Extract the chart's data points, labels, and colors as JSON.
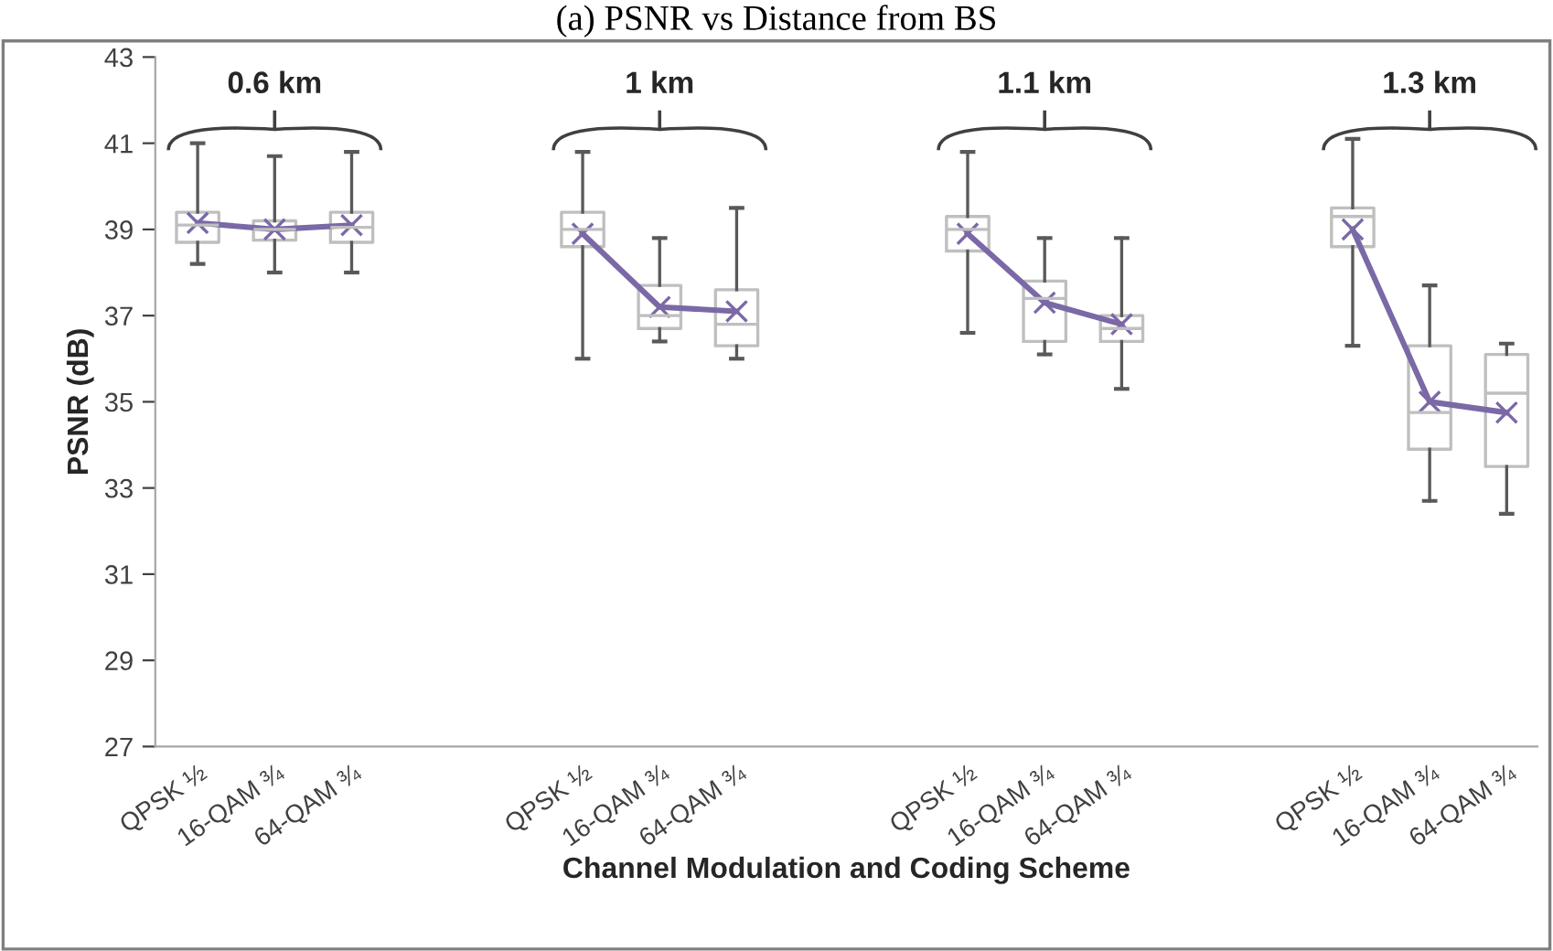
{
  "chart_data": {
    "type": "box",
    "title": "(a) PSNR vs Distance from BS",
    "xlabel": "Channel Modulation and Coding Scheme",
    "ylabel": "PSNR (dB)",
    "categories": [
      "QPSK ½",
      "16-QAM ¾",
      "64-QAM ¾",
      null,
      null,
      "QPSK ½",
      "16-QAM ¾",
      "64-QAM ¾",
      null,
      null,
      "QPSK ½",
      "16-QAM ¾",
      "64-QAM ¾",
      null,
      null,
      "QPSK ½",
      "16-QAM ¾",
      "64-QAM ¾"
    ],
    "boxes": [
      {
        "low": 38.2,
        "q1": 38.7,
        "median": 39.1,
        "q3": 39.4,
        "high": 41.0
      },
      {
        "low": 38.0,
        "q1": 38.75,
        "median": 39.0,
        "q3": 39.2,
        "high": 40.7
      },
      {
        "low": 38.0,
        "q1": 38.7,
        "median": 39.05,
        "q3": 39.4,
        "high": 40.8
      },
      null,
      null,
      {
        "low": 36.0,
        "q1": 38.6,
        "median": 39.0,
        "q3": 39.4,
        "high": 40.8
      },
      {
        "low": 36.4,
        "q1": 36.7,
        "median": 37.0,
        "q3": 37.7,
        "high": 38.8
      },
      {
        "low": 36.0,
        "q1": 36.3,
        "median": 36.8,
        "q3": 37.6,
        "high": 39.5
      },
      null,
      null,
      {
        "low": 36.6,
        "q1": 38.5,
        "median": 39.0,
        "q3": 39.3,
        "high": 40.8
      },
      {
        "low": 36.1,
        "q1": 36.4,
        "median": 37.4,
        "q3": 37.8,
        "high": 38.8
      },
      {
        "low": 35.3,
        "q1": 36.4,
        "median": 36.7,
        "q3": 37.0,
        "high": 38.8
      },
      null,
      null,
      {
        "low": 36.3,
        "q1": 38.6,
        "median": 39.3,
        "q3": 39.5,
        "high": 41.1
      },
      {
        "low": 32.7,
        "q1": 33.9,
        "median": 34.75,
        "q3": 36.3,
        "high": 37.7
      },
      {
        "low": 32.4,
        "q1": 33.5,
        "median": 35.2,
        "q3": 36.1,
        "high": 36.35
      }
    ],
    "series": [
      {
        "type": "line",
        "color": "#7b68a6",
        "marker": "cross",
        "values": [
          39.15,
          39.0,
          39.1,
          null,
          null,
          38.9,
          37.2,
          37.1,
          null,
          null,
          38.9,
          37.3,
          36.8,
          null,
          null,
          39.0,
          35.0,
          34.75
        ]
      }
    ],
    "ylim": [
      27,
      43
    ],
    "yticks": [
      27,
      29,
      31,
      33,
      35,
      37,
      39,
      41,
      43
    ],
    "grid": false,
    "legend": false,
    "annotations": [
      "0.6 km",
      "1 km",
      "1.1 km",
      "1.3 km"
    ]
  }
}
